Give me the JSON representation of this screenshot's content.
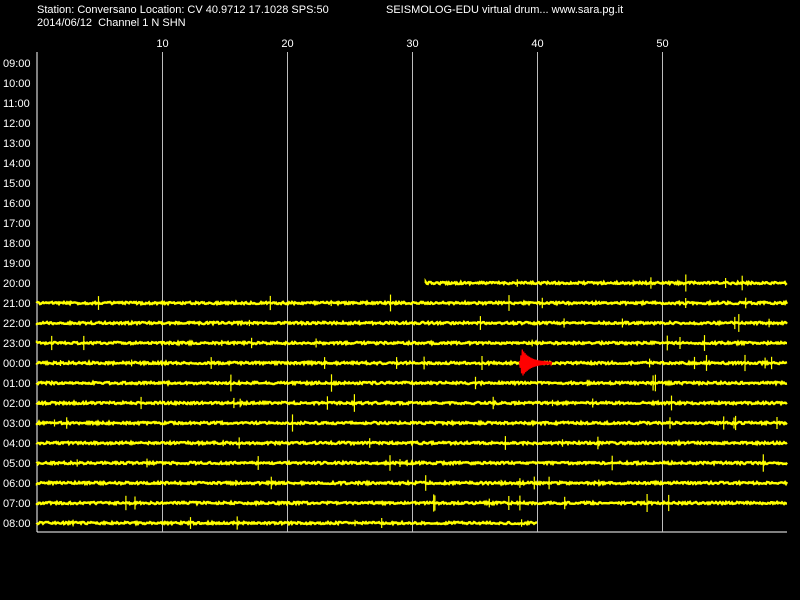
{
  "header": {
    "station_line": "Station: Conversano Location: CV 40.9712 17.1028 SPS:50",
    "date_line": "2014/06/12  Channel 1 N SHN",
    "app_line": "SEISMOLOG-EDU virtual drum... www.sara.pg.it"
  },
  "chart_data": {
    "type": "line",
    "title": "",
    "xlabel": "",
    "ylabel": "",
    "x_unit": "minutes",
    "xlim": [
      0,
      60
    ],
    "x_ticks": [
      10,
      20,
      30,
      40,
      50
    ],
    "grid": true,
    "row_labels": [
      "09:00",
      "10:00",
      "11:00",
      "12:00",
      "13:00",
      "14:00",
      "15:00",
      "16:00",
      "17:00",
      "18:00",
      "19:00",
      "20:00",
      "21:00",
      "22:00",
      "23:00",
      "00:00",
      "01:00",
      "02:00",
      "03:00",
      "04:00",
      "05:00",
      "06:00",
      "07:00",
      "08:00"
    ],
    "trace_color": "#ffff00",
    "event_color": "#ff0000",
    "traces": [
      {
        "hour": "20:00",
        "start_min": 31.1,
        "end_min": 60
      },
      {
        "hour": "21:00",
        "start_min": 0,
        "end_min": 60
      },
      {
        "hour": "22:00",
        "start_min": 0,
        "end_min": 60
      },
      {
        "hour": "23:00",
        "start_min": 0,
        "end_min": 60
      },
      {
        "hour": "00:00",
        "start_min": 0,
        "end_min": 60
      },
      {
        "hour": "01:00",
        "start_min": 0,
        "end_min": 60
      },
      {
        "hour": "02:00",
        "start_min": 0,
        "end_min": 60
      },
      {
        "hour": "03:00",
        "start_min": 0,
        "end_min": 60
      },
      {
        "hour": "04:00",
        "start_min": 0,
        "end_min": 60
      },
      {
        "hour": "05:00",
        "start_min": 0,
        "end_min": 60
      },
      {
        "hour": "06:00",
        "start_min": 0,
        "end_min": 60
      },
      {
        "hour": "07:00",
        "start_min": 0,
        "end_min": 60
      },
      {
        "hour": "08:00",
        "start_min": 0,
        "end_min": 40
      }
    ],
    "events": [
      {
        "hour": "00:00",
        "start_min": 38.6,
        "end_min": 41.2,
        "peak_min": 38.8
      }
    ]
  }
}
